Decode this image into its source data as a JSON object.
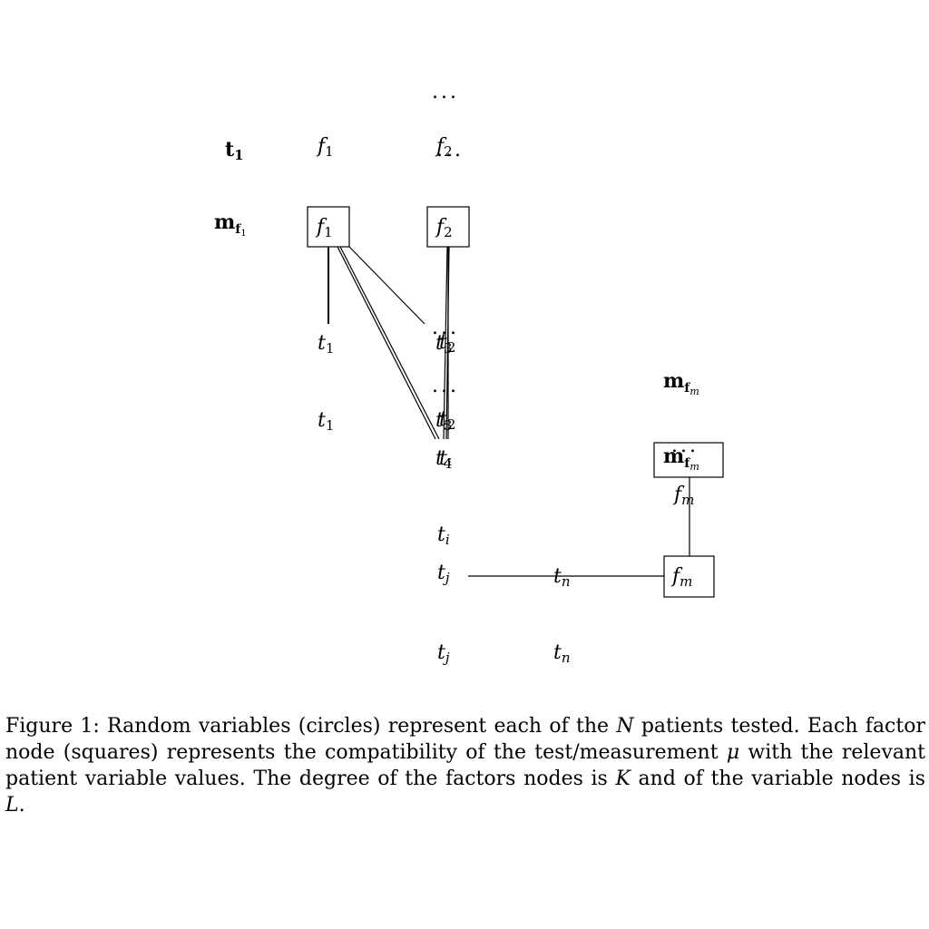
{
  "nodes": {
    "t_bold": "t",
    "t_bold_sub": "1",
    "m_bold": "m",
    "m_f_sub": "f",
    "m_f_sub1": "1",
    "m_f_subm": "m",
    "f": "f",
    "t": "t",
    "sub1": "1",
    "sub2": "2",
    "sub3": "3",
    "sub4": "4",
    "subi": "i",
    "subj": "j",
    "subn": "n",
    "subm": "m",
    "dots": "..."
  },
  "caption": {
    "part1": "Figure 1: Random variables (circles) represent each of the ",
    "N": "N",
    "part2": " patients tested. Each factor node (squares) represents the compatibility of the test/measurement ",
    "mu": "μ",
    "part3": " with the relevant patient variable values. The degree of the factors nodes is ",
    "K": "K",
    "part4": " and of the variable nodes is ",
    "L": "L",
    "part5": "."
  }
}
